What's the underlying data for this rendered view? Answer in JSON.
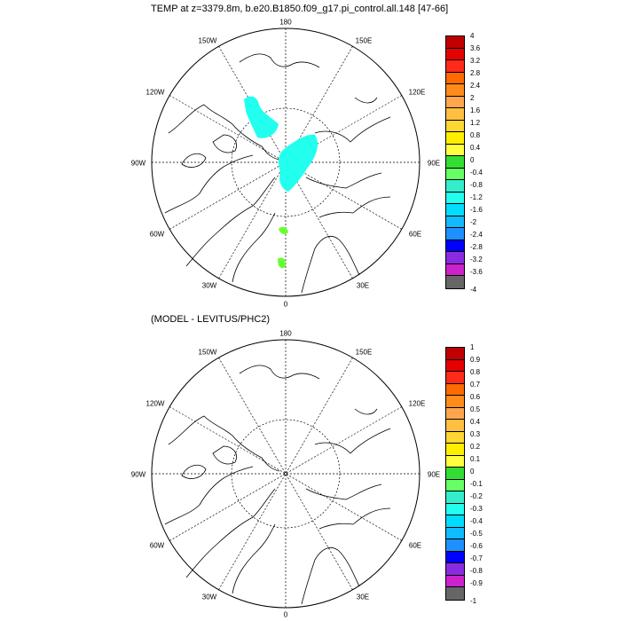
{
  "maps": [
    {
      "title": "TEMP at z=3379.8m, b.e20.B1850.f09_g17.pi_control.all.148 [47-66]",
      "lon_labels": {
        "top": "180",
        "bottom": "0",
        "left": "90W",
        "right": "90E",
        "ul1": "150W",
        "ul2": "120W",
        "ur1": "150E",
        "ur2": "120E",
        "ll1": "60W",
        "ll2": "30W",
        "lr1": "60E",
        "lr2": "30E"
      },
      "colorbar_labels": [
        "4",
        "3.6",
        "3.2",
        "2.8",
        "2.4",
        "2",
        "1.6",
        "1.2",
        "0.8",
        "0.4",
        "0",
        "-0.4",
        "-0.8",
        "-1.2",
        "-1.6",
        "-2",
        "-2.4",
        "-2.8",
        "-3.2",
        "-3.6",
        "-4"
      ]
    },
    {
      "title": "(MODEL - LEVITUS/PHC2)",
      "lon_labels": {
        "top": "180",
        "bottom": "0",
        "left": "90W",
        "right": "90E",
        "ul1": "150W",
        "ul2": "120W",
        "ur1": "150E",
        "ur2": "120E",
        "ll1": "60W",
        "ll2": "30W",
        "lr1": "60E",
        "lr2": "30E"
      },
      "colorbar_labels": [
        "1",
        "0.9",
        "0.8",
        "0.7",
        "0.6",
        "0.5",
        "0.4",
        "0.3",
        "0.2",
        "0.1",
        "0",
        "-0.1",
        "-0.2",
        "-0.3",
        "-0.4",
        "-0.5",
        "-0.6",
        "-0.7",
        "-0.8",
        "-0.9",
        "-1"
      ]
    }
  ],
  "colorbar_colors": [
    "#c00000",
    "#e60000",
    "#ff2a1a",
    "#ff6a00",
    "#ff8c1a",
    "#ffa64d",
    "#ffbf40",
    "#ffd633",
    "#ffee00",
    "#ffff40",
    "#33dd33",
    "#66ff66",
    "#33eecc",
    "#22ffee",
    "#00ddff",
    "#11bbff",
    "#1e90ff",
    "#1060ff",
    "#0000ff",
    "#6020d0",
    "#8a2be2",
    "#cc22cc",
    "#dddddd",
    "#aaaaaa",
    "#666666"
  ],
  "anomaly_colors": {
    "cyan": "#22ffee",
    "green": "#66ff33"
  }
}
